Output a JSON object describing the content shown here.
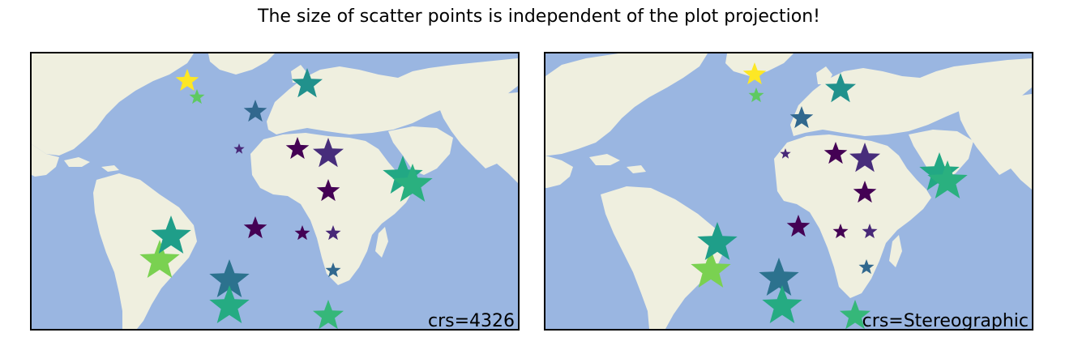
{
  "figure": {
    "suptitle": "The size of scatter points is independent of the plot projection!"
  },
  "colors": {
    "ocean": "#9ab6e1",
    "land": "#efefdf",
    "frame": "#000000"
  },
  "panels": [
    {
      "id": "left",
      "projection": "PlateCarree",
      "crs_label": "crs=4326",
      "markers": [
        {
          "color": "#fde725",
          "size": "medium"
        },
        {
          "color": "#5ec962",
          "size": "small"
        },
        {
          "color": "#31688e",
          "size": "medium"
        },
        {
          "color": "#21918c",
          "size": "large"
        },
        {
          "color": "#482878",
          "size": "tiny"
        },
        {
          "color": "#440154",
          "size": "medium"
        },
        {
          "color": "#472d7b",
          "size": "large"
        },
        {
          "color": "#440154",
          "size": "medium"
        },
        {
          "color": "#22a884",
          "size": "xlarge"
        },
        {
          "color": "#2ab07f",
          "size": "xlarge"
        },
        {
          "color": "#440154",
          "size": "medium"
        },
        {
          "color": "#440154",
          "size": "small"
        },
        {
          "color": "#482878",
          "size": "small"
        },
        {
          "color": "#7ad151",
          "size": "xlarge"
        },
        {
          "color": "#1f9e89",
          "size": "xlarge"
        },
        {
          "color": "#31688e",
          "size": "small"
        },
        {
          "color": "#2c728e",
          "size": "xlarge"
        },
        {
          "color": "#25ab82",
          "size": "xlarge"
        },
        {
          "color": "#35b779",
          "size": "large"
        }
      ]
    },
    {
      "id": "right",
      "projection": "Stereographic",
      "crs_label": "crs=Stereographic",
      "markers": [
        {
          "color": "#fde725",
          "size": "medium"
        },
        {
          "color": "#5ec962",
          "size": "small"
        },
        {
          "color": "#31688e",
          "size": "medium"
        },
        {
          "color": "#21918c",
          "size": "large"
        },
        {
          "color": "#482878",
          "size": "tiny"
        },
        {
          "color": "#440154",
          "size": "medium"
        },
        {
          "color": "#472d7b",
          "size": "large"
        },
        {
          "color": "#440154",
          "size": "medium"
        },
        {
          "color": "#22a884",
          "size": "xlarge"
        },
        {
          "color": "#2ab07f",
          "size": "xlarge"
        },
        {
          "color": "#440154",
          "size": "medium"
        },
        {
          "color": "#440154",
          "size": "small"
        },
        {
          "color": "#482878",
          "size": "small"
        },
        {
          "color": "#7ad151",
          "size": "xlarge"
        },
        {
          "color": "#1f9e89",
          "size": "xlarge"
        },
        {
          "color": "#31688e",
          "size": "small"
        },
        {
          "color": "#2c728e",
          "size": "xlarge"
        },
        {
          "color": "#25ab82",
          "size": "xlarge"
        },
        {
          "color": "#35b779",
          "size": "large"
        }
      ]
    }
  ]
}
